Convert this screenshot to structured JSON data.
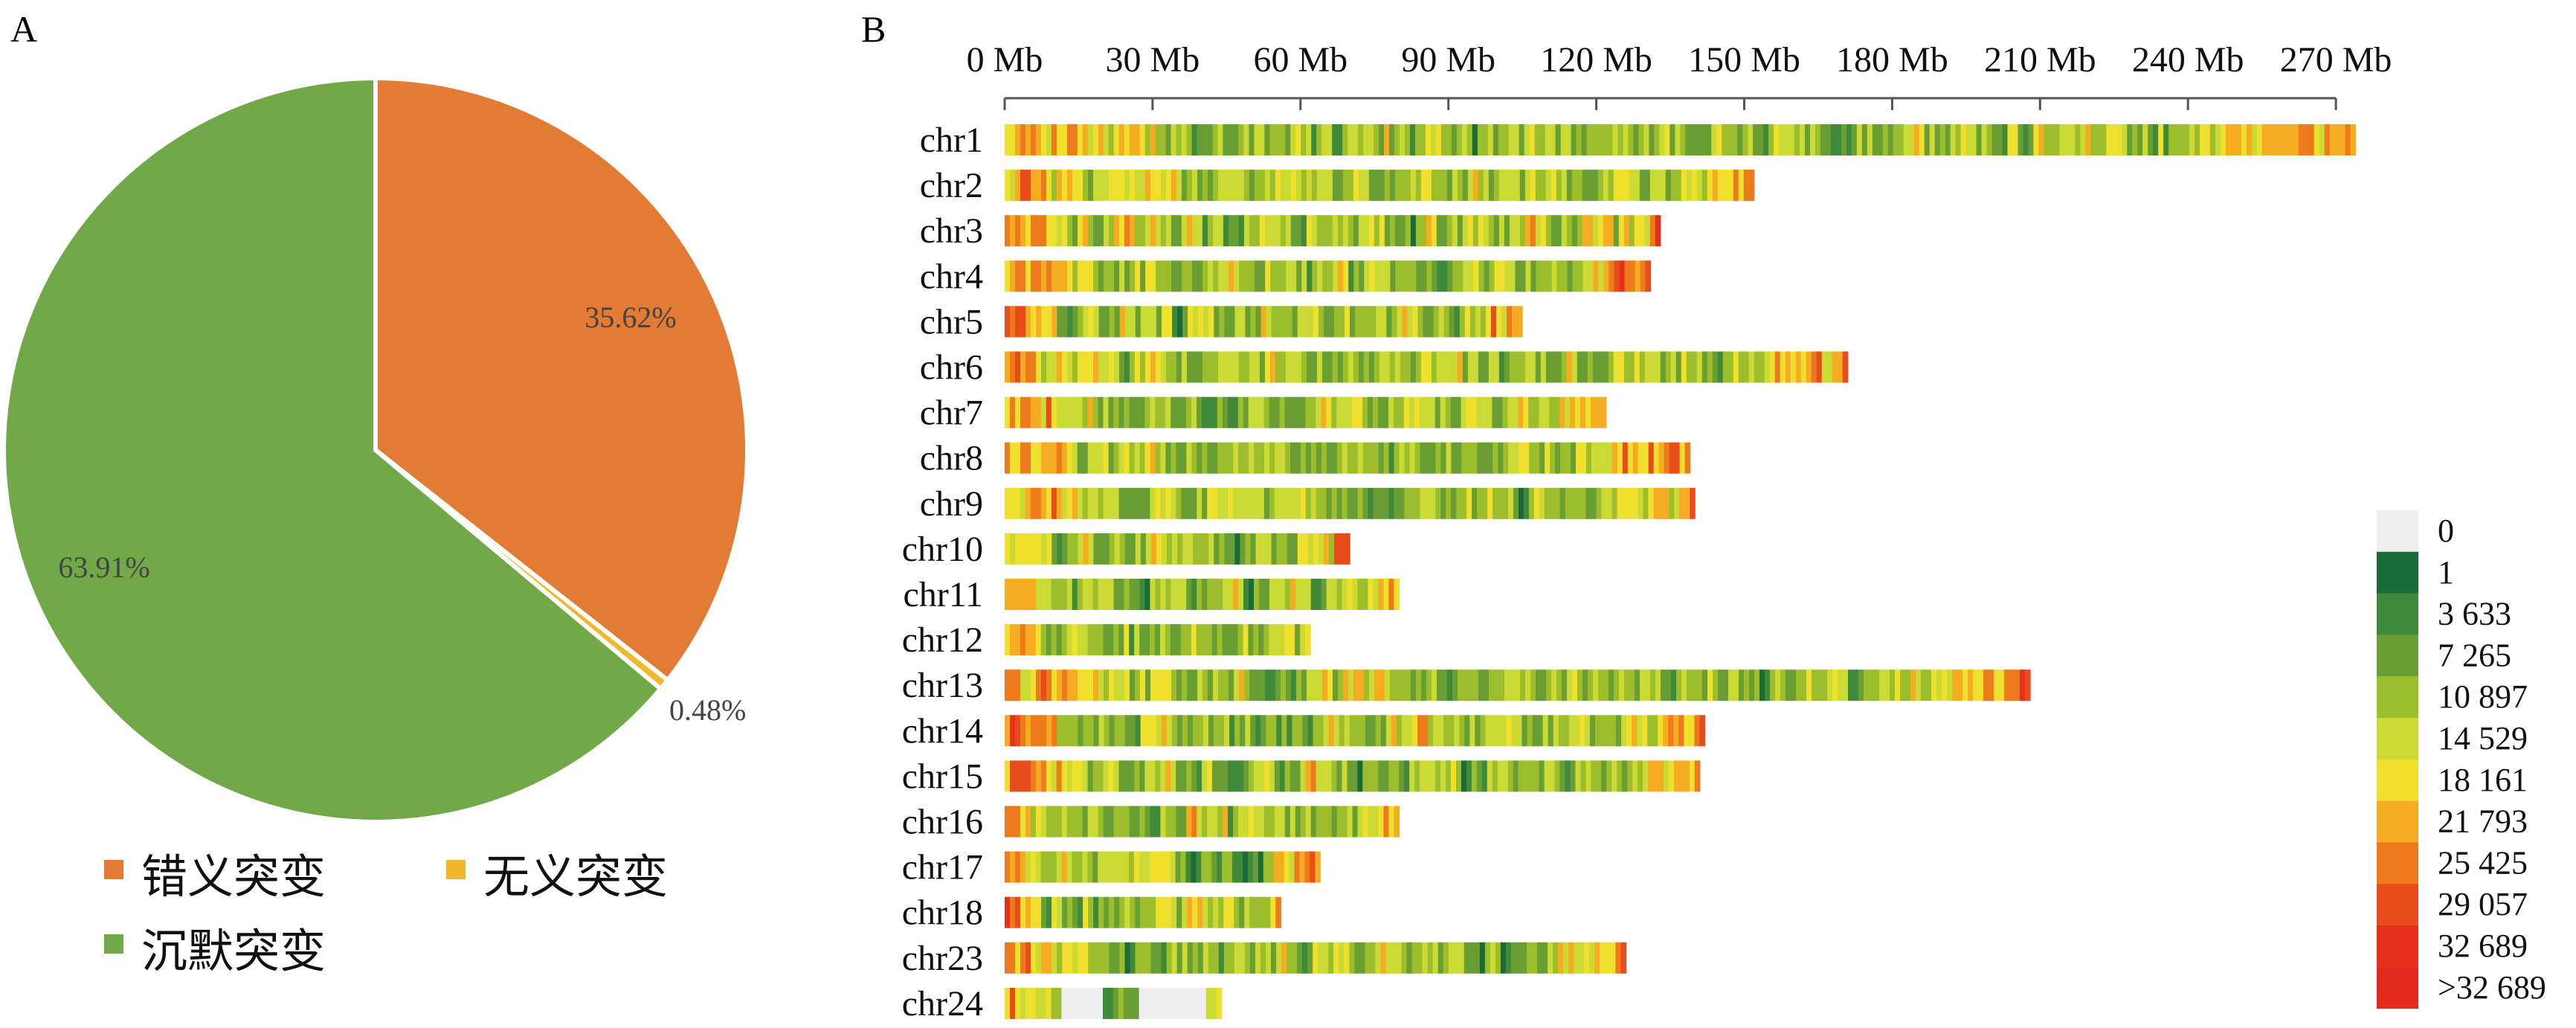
{
  "panels": {
    "a": "A",
    "b": "B"
  },
  "chart_data": [
    {
      "type": "pie",
      "slices": [
        {
          "label": "错义突变",
          "value": 35.62,
          "value_label": "35.62%",
          "color": "#E27B34"
        },
        {
          "label": "无义突变",
          "value": 0.48,
          "value_label": "0.48%",
          "color": "#F2B82D"
        },
        {
          "label": "沉默突变",
          "value": 63.91,
          "value_label": "63.91%",
          "color": "#72A948"
        }
      ],
      "slice_separator_color": "#ffffff"
    },
    {
      "type": "heatmap",
      "x_ticks": [
        "0 Mb",
        "30 Mb",
        "60 Mb",
        "90 Mb",
        "120 Mb",
        "150 Mb",
        "180 Mb",
        "210 Mb",
        "240 Mb",
        "270 Mb"
      ],
      "x_tick_values": [
        0,
        30,
        60,
        90,
        120,
        150,
        180,
        210,
        240,
        270
      ],
      "x_unit": "Mb",
      "chromosomes": [
        {
          "name": "chr1",
          "length": 274
        },
        {
          "name": "chr2",
          "length": 152
        },
        {
          "name": "chr3",
          "length": 133
        },
        {
          "name": "chr4",
          "length": 131
        },
        {
          "name": "chr5",
          "length": 105
        },
        {
          "name": "chr6",
          "length": 171
        },
        {
          "name": "chr7",
          "length": 122
        },
        {
          "name": "chr8",
          "length": 139
        },
        {
          "name": "chr9",
          "length": 140
        },
        {
          "name": "chr10",
          "length": 70
        },
        {
          "name": "chr11",
          "length": 80
        },
        {
          "name": "chr12",
          "length": 62
        },
        {
          "name": "chr13",
          "length": 208
        },
        {
          "name": "chr14",
          "length": 142
        },
        {
          "name": "chr15",
          "length": 141
        },
        {
          "name": "chr16",
          "length": 80
        },
        {
          "name": "chr17",
          "length": 64
        },
        {
          "name": "chr18",
          "length": 56
        },
        {
          "name": "chr23",
          "length": 126
        },
        {
          "name": "chr24",
          "length": 44
        }
      ],
      "color_scale": [
        {
          "label": "0",
          "color": "#EEEEEE"
        },
        {
          "label": "1",
          "color": "#1A6B37"
        },
        {
          "label": "3 633",
          "color": "#3F8A3A"
        },
        {
          "label": "7 265",
          "color": "#689E34"
        },
        {
          "label": "10 897",
          "color": "#9DBE2C"
        },
        {
          "label": "14 529",
          "color": "#CBDA35"
        },
        {
          "label": "18 161",
          "color": "#F0E02E"
        },
        {
          "label": "21 793",
          "color": "#F5AC22"
        },
        {
          "label": "25 425",
          "color": "#EE7A1E"
        },
        {
          "label": "29 057",
          "color": "#E84C1B"
        },
        {
          "label": "32 689",
          "color": "#E5301C"
        },
        {
          "label": ">32 689",
          "color": "#E12A20"
        }
      ]
    }
  ]
}
